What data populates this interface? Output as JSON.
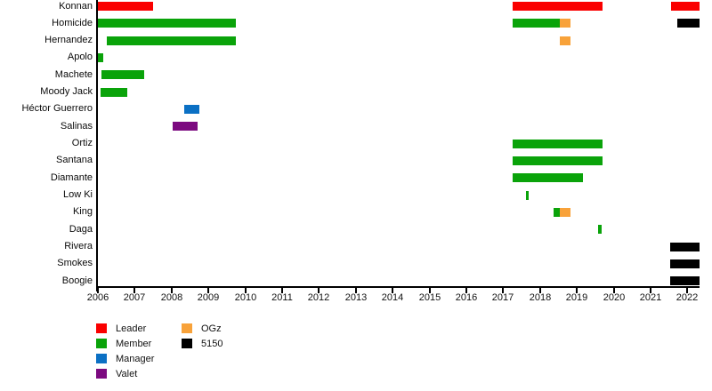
{
  "chart_data": {
    "type": "bar",
    "variant": "horizontal-gantt-timeline",
    "title": "",
    "xlabel": "",
    "ylabel": "",
    "x_axis": {
      "min": 2006,
      "max": 2022,
      "plot_end": 2022.33,
      "tick_labels": [
        "2006",
        "2007",
        "2008",
        "2009",
        "2010",
        "2011",
        "2012",
        "2013",
        "2014",
        "2015",
        "2016",
        "2017",
        "2018",
        "2019",
        "2020",
        "2021",
        "2022"
      ],
      "grid": false
    },
    "legend_position": "bottom-left",
    "legend": [
      {
        "label": "Leader",
        "color": "#fa0000",
        "column": 0,
        "row": 0
      },
      {
        "label": "Member",
        "color": "#0aa30a",
        "column": 0,
        "row": 1
      },
      {
        "label": "Manager",
        "color": "#0b70c4",
        "column": 0,
        "row": 2
      },
      {
        "label": "Valet",
        "color": "#7c0a80",
        "column": 0,
        "row": 3
      },
      {
        "label": "OGz",
        "color": "#f8a23a",
        "column": 1,
        "row": 0
      },
      {
        "label": "5150",
        "color": "#000000",
        "column": 1,
        "row": 1
      }
    ],
    "rows": [
      {
        "name": "Konnan",
        "segments": [
          {
            "start": 2006.0,
            "end": 2007.5,
            "role": "Leader"
          },
          {
            "start": 2017.25,
            "end": 2019.7,
            "role": "Leader"
          },
          {
            "start": 2021.55,
            "end": 2022.33,
            "role": "Leader"
          }
        ]
      },
      {
        "name": "Homicide",
        "segments": [
          {
            "start": 2006.0,
            "end": 2009.75,
            "role": "Member"
          },
          {
            "start": 2017.25,
            "end": 2018.54,
            "role": "Member"
          },
          {
            "start": 2018.54,
            "end": 2018.84,
            "role": "OGz"
          },
          {
            "start": 2021.73,
            "end": 2022.33,
            "role": "5150"
          }
        ]
      },
      {
        "name": "Hernandez",
        "segments": [
          {
            "start": 2006.25,
            "end": 2009.75,
            "role": "Member"
          },
          {
            "start": 2018.54,
            "end": 2018.84,
            "role": "OGz"
          }
        ]
      },
      {
        "name": "Apolo",
        "segments": [
          {
            "start": 2006.0,
            "end": 2006.15,
            "role": "Member"
          }
        ]
      },
      {
        "name": "Machete",
        "segments": [
          {
            "start": 2006.1,
            "end": 2007.25,
            "role": "Member"
          }
        ]
      },
      {
        "name": "Moody Jack",
        "segments": [
          {
            "start": 2006.08,
            "end": 2006.8,
            "role": "Member"
          }
        ]
      },
      {
        "name": "Héctor Guerrero",
        "segments": [
          {
            "start": 2008.34,
            "end": 2008.75,
            "role": "Manager"
          }
        ]
      },
      {
        "name": "Salinas",
        "segments": [
          {
            "start": 2008.04,
            "end": 2008.72,
            "role": "Valet"
          }
        ]
      },
      {
        "name": "Ortiz",
        "segments": [
          {
            "start": 2017.25,
            "end": 2019.7,
            "role": "Member"
          }
        ]
      },
      {
        "name": "Santana",
        "segments": [
          {
            "start": 2017.25,
            "end": 2019.7,
            "role": "Member"
          }
        ]
      },
      {
        "name": "Diamante",
        "segments": [
          {
            "start": 2017.25,
            "end": 2019.15,
            "role": "Member"
          }
        ]
      },
      {
        "name": "Low Ki",
        "segments": [
          {
            "start": 2017.62,
            "end": 2017.69,
            "role": "Member"
          }
        ]
      },
      {
        "name": "King",
        "segments": [
          {
            "start": 2018.36,
            "end": 2018.54,
            "role": "Member"
          },
          {
            "start": 2018.54,
            "end": 2018.84,
            "role": "OGz"
          }
        ]
      },
      {
        "name": "Daga",
        "segments": [
          {
            "start": 2019.57,
            "end": 2019.67,
            "role": "Member"
          }
        ]
      },
      {
        "name": "Rivera",
        "segments": [
          {
            "start": 2021.54,
            "end": 2022.33,
            "role": "5150"
          }
        ]
      },
      {
        "name": "Smokes",
        "segments": [
          {
            "start": 2021.54,
            "end": 2022.33,
            "role": "5150"
          }
        ]
      },
      {
        "name": "Boogie",
        "segments": [
          {
            "start": 2021.54,
            "end": 2022.33,
            "role": "5150"
          }
        ]
      }
    ]
  }
}
